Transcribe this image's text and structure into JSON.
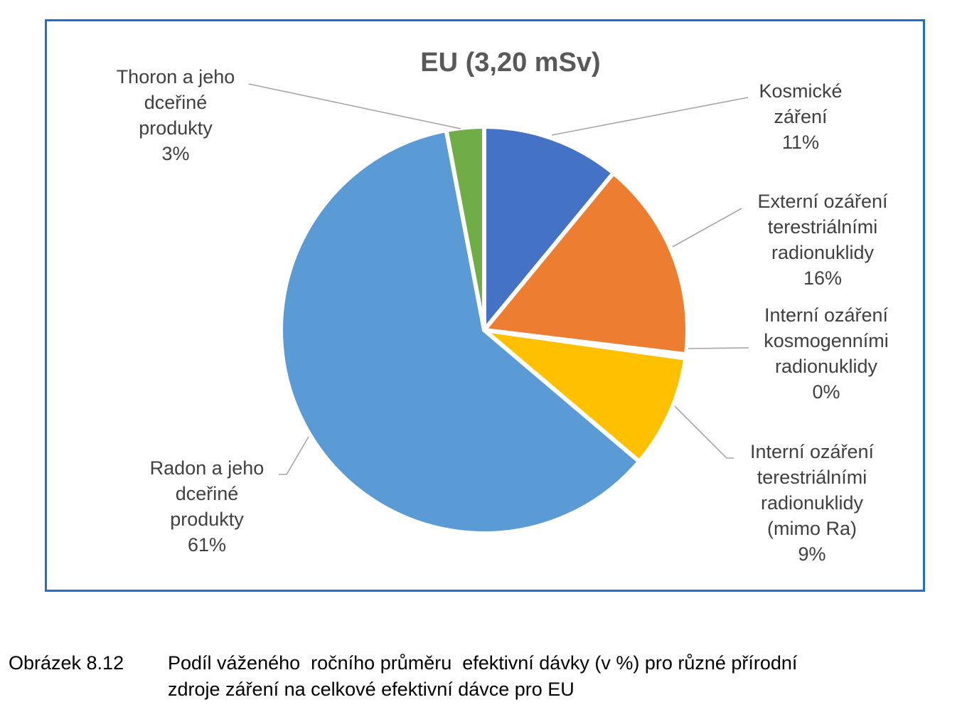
{
  "chart_data": {
    "type": "pie",
    "title": "EU (3,20 mSv)",
    "slices": [
      {
        "name": "Kosmické záření",
        "lines": [
          "Kosmické",
          "záření"
        ],
        "value": 11,
        "percent_label": "11%",
        "color": "#4472c4"
      },
      {
        "name": "Externí ozáření terestriálními radionuklidy",
        "lines": [
          "Externí ozáření",
          "terestriálními",
          "radionuklidy"
        ],
        "value": 16,
        "percent_label": "16%",
        "color": "#ed7d31"
      },
      {
        "name": "Interní ozáření kosmogenními radionuklidy",
        "lines": [
          "Interní ozáření",
          "kosmogenními",
          "radionuklidy"
        ],
        "value": 0.3,
        "percent_label": "0%",
        "color": "#a5a5a5"
      },
      {
        "name": "Interní ozáření terestriálními radionuklidy (mimo Ra)",
        "lines": [
          "Interní ozáření",
          "terestriálními",
          "radionuklidy",
          "(mimo Ra)"
        ],
        "value": 9,
        "percent_label": "9%",
        "color": "#ffc000"
      },
      {
        "name": "Radon a jeho dceřiné produkty",
        "lines": [
          "Radon a jeho",
          "dceřiné",
          "produkty"
        ],
        "value": 61,
        "percent_label": "61%",
        "color": "#5b9bd5"
      },
      {
        "name": "Thoron a jeho dceřiné produkty",
        "lines": [
          "Thoron a jeho",
          "dceřiné",
          "produkty"
        ],
        "value": 3,
        "percent_label": "3%",
        "color": "#70ad47"
      }
    ]
  },
  "caption": {
    "number": "Obrázek 8.12",
    "text": "Podíl váženého  ročního průměru  efektivní dávky (v %) pro různé přírodní\nzdroje záření na celkové efektivní dávce pro EU"
  }
}
